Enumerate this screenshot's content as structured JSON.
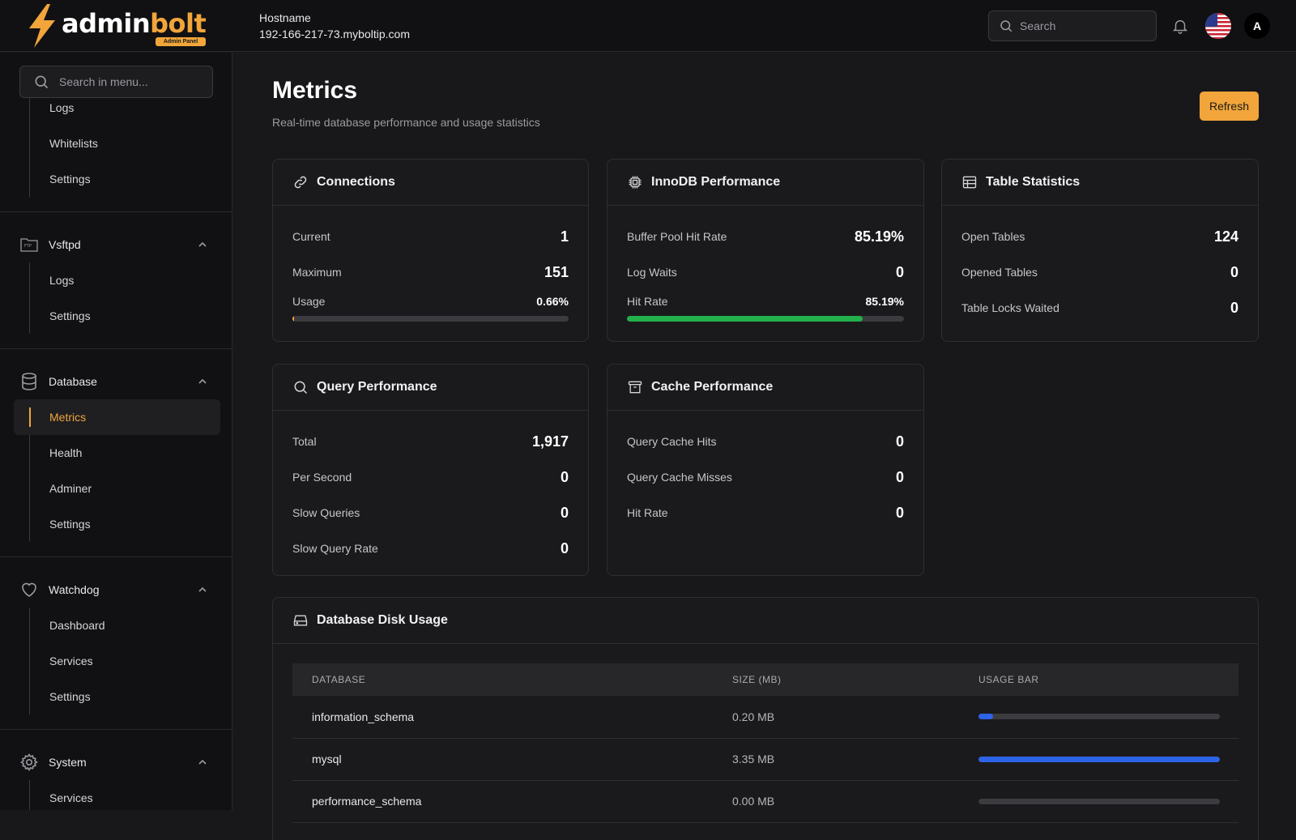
{
  "brand": {
    "word_a": "admin",
    "word_b": "bolt",
    "badge": "Admin Panel",
    "accent": "#f1a53a"
  },
  "header": {
    "hostname_label": "Hostname",
    "hostname_value": "192-166-217-73.myboltip.com",
    "search_placeholder": "Search",
    "avatar_initial": "A"
  },
  "sidebar": {
    "search_placeholder": "Search in menu...",
    "top_items": [
      {
        "label": "Logs"
      },
      {
        "label": "Whitelists"
      },
      {
        "label": "Settings"
      }
    ],
    "groups": [
      {
        "label": "Vsftpd",
        "icon": "ftp-folder-icon",
        "items": [
          {
            "label": "Logs"
          },
          {
            "label": "Settings"
          }
        ]
      },
      {
        "label": "Database",
        "icon": "database-icon",
        "items": [
          {
            "label": "Metrics"
          },
          {
            "label": "Health"
          },
          {
            "label": "Adminer"
          },
          {
            "label": "Settings"
          }
        ]
      },
      {
        "label": "Watchdog",
        "icon": "heart-icon",
        "items": [
          {
            "label": "Dashboard"
          },
          {
            "label": "Services"
          },
          {
            "label": "Settings"
          }
        ]
      },
      {
        "label": "System",
        "icon": "gear-icon",
        "items": [
          {
            "label": "Services"
          }
        ]
      }
    ],
    "active_item": "Metrics"
  },
  "page": {
    "title": "Metrics",
    "subtitle": "Real-time database performance and usage statistics",
    "refresh_label": "Refresh"
  },
  "cards": {
    "connections": {
      "title": "Connections",
      "rows": [
        {
          "label": "Current",
          "value": "1"
        },
        {
          "label": "Maximum",
          "value": "151"
        }
      ],
      "usage_label": "Usage",
      "usage_value": "0.66%",
      "usage_fraction": 0.0066,
      "usage_color": "#f1a53a"
    },
    "innodb": {
      "title": "InnoDB Performance",
      "rows": [
        {
          "label": "Buffer Pool Hit Rate",
          "value": "85.19%"
        },
        {
          "label": "Log Waits",
          "value": "0"
        }
      ],
      "hit_label": "Hit Rate",
      "hit_value": "85.19%",
      "hit_fraction": 0.8519,
      "hit_color": "#22b04b"
    },
    "tables": {
      "title": "Table Statistics",
      "rows": [
        {
          "label": "Open Tables",
          "value": "124"
        },
        {
          "label": "Opened Tables",
          "value": "0"
        },
        {
          "label": "Table Locks Waited",
          "value": "0"
        }
      ]
    },
    "query": {
      "title": "Query Performance",
      "rows": [
        {
          "label": "Total",
          "value": "1,917"
        },
        {
          "label": "Per Second",
          "value": "0"
        },
        {
          "label": "Slow Queries",
          "value": "0"
        },
        {
          "label": "Slow Query Rate",
          "value": "0"
        }
      ]
    },
    "cache": {
      "title": "Cache Performance",
      "rows": [
        {
          "label": "Query Cache Hits",
          "value": "0"
        },
        {
          "label": "Query Cache Misses",
          "value": "0"
        },
        {
          "label": "Hit Rate",
          "value": "0"
        }
      ]
    }
  },
  "disk": {
    "title": "Database Disk Usage",
    "columns": [
      "DATABASE",
      "SIZE (MB)",
      "USAGE BAR"
    ],
    "rows": [
      {
        "name": "information_schema",
        "size": "0.20 MB",
        "fraction": 0.06
      },
      {
        "name": "mysql",
        "size": "3.35 MB",
        "fraction": 1.0
      },
      {
        "name": "performance_schema",
        "size": "0.00 MB",
        "fraction": 0.0
      }
    ]
  }
}
